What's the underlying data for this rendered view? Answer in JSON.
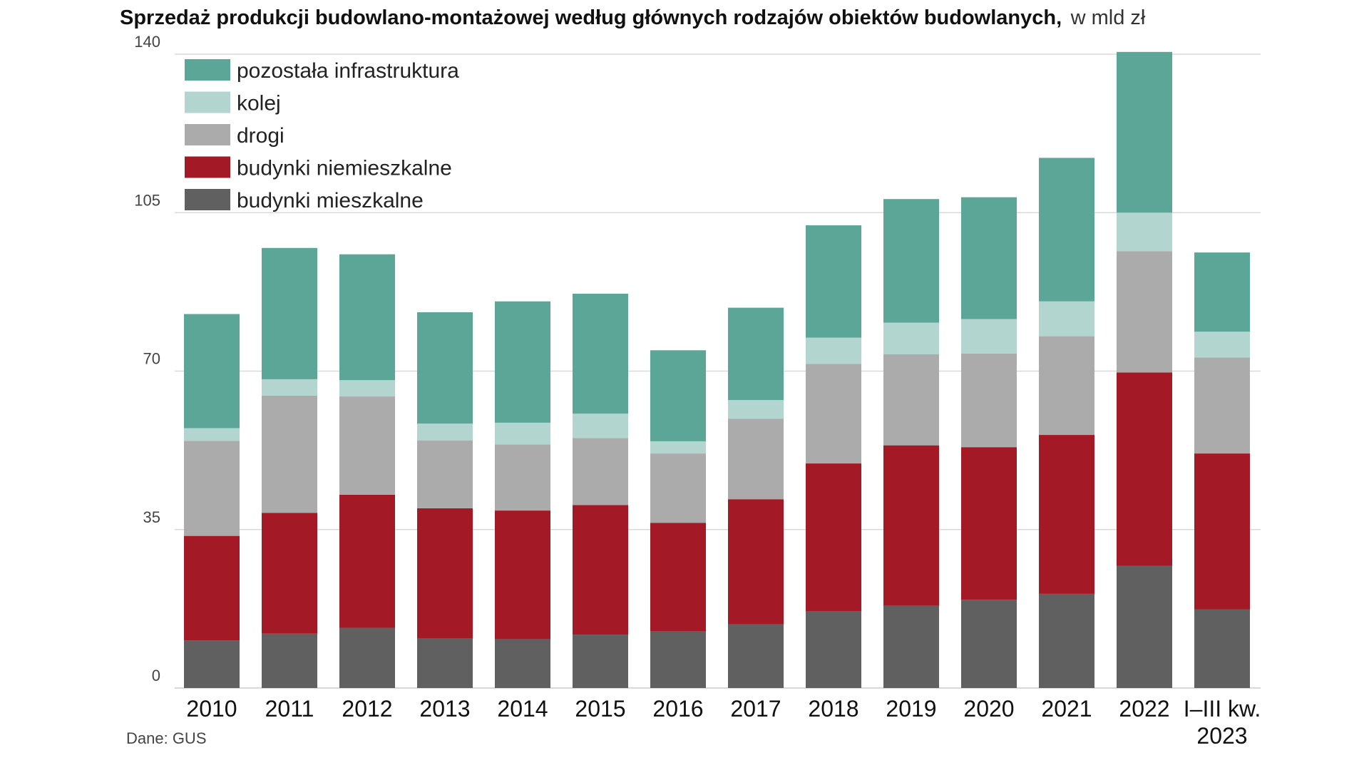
{
  "chart_data": {
    "type": "bar",
    "stacked": true,
    "title": "Sprzedaż produkcji budowlano-montażowej według głównych rodzajów obiektów budowlanych,",
    "title_unit": "w mld zł",
    "xlabel": "",
    "ylabel": "",
    "ylim": [
      0,
      140
    ],
    "yticks": [
      0,
      35,
      70,
      105,
      140
    ],
    "grid": true,
    "legend_position": "top-left",
    "categories": [
      "2010",
      "2011",
      "2012",
      "2013",
      "2014",
      "2015",
      "2016",
      "2017",
      "2018",
      "2019",
      "2020",
      "2021",
      "2022",
      "I–III kw.\n2023"
    ],
    "series": [
      {
        "name": "budynki mieszkalne",
        "color": "#606060",
        "values": [
          10.5,
          12.0,
          13.3,
          10.9,
          10.8,
          11.8,
          12.5,
          14.1,
          16.9,
          18.2,
          19.5,
          20.8,
          27.0,
          17.4
        ]
      },
      {
        "name": "budynki niemieszkalne",
        "color": "#a31a26",
        "values": [
          23.1,
          26.7,
          29.4,
          28.8,
          28.4,
          28.6,
          24.0,
          27.6,
          32.7,
          35.4,
          33.7,
          35.1,
          42.7,
          34.4
        ]
      },
      {
        "name": "drogi",
        "color": "#ababab",
        "values": [
          21.0,
          25.9,
          21.7,
          15.0,
          14.6,
          14.8,
          15.3,
          17.8,
          22.0,
          20.1,
          20.7,
          21.8,
          26.8,
          21.2
        ]
      },
      {
        "name": "kolej",
        "color": "#b2d6cf",
        "values": [
          2.8,
          3.6,
          3.6,
          3.7,
          4.8,
          5.4,
          2.7,
          4.1,
          5.8,
          7.0,
          7.6,
          7.7,
          8.5,
          5.7
        ]
      },
      {
        "name": "pozostała infrastruktura",
        "color": "#5ba696",
        "values": [
          25.2,
          29.0,
          27.8,
          24.6,
          26.8,
          26.5,
          20.1,
          20.4,
          24.8,
          27.3,
          26.9,
          31.7,
          35.5,
          17.5
        ]
      }
    ],
    "legend_order": [
      "pozostała infrastruktura",
      "kolej",
      "drogi",
      "budynki niemieszkalne",
      "budynki mieszkalne"
    ]
  },
  "source": "Dane: GUS"
}
